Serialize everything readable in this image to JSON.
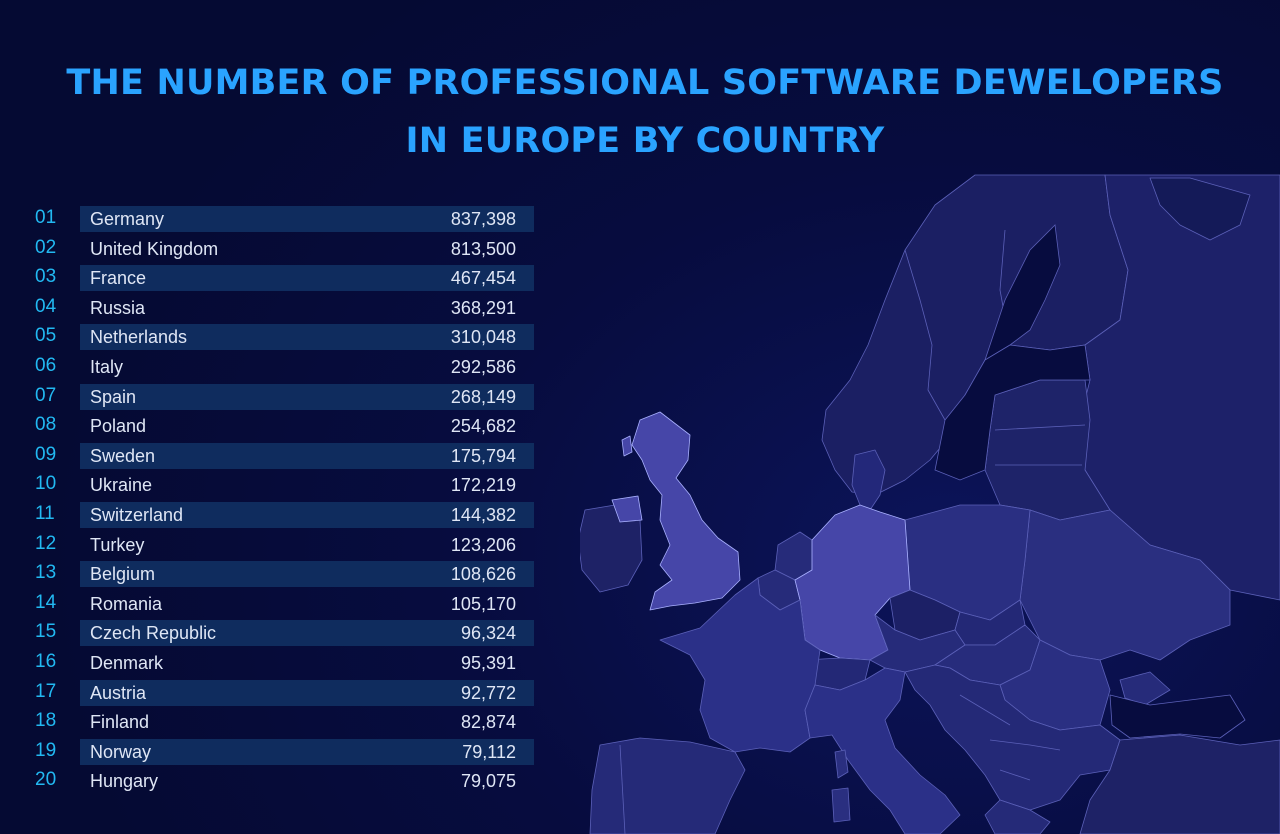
{
  "title": {
    "line1": "THE NUMBER OF PROFESSIONAL SOFTWARE DEWELOPERS",
    "line2": "IN EUROPE BY COUNTRY"
  },
  "colors": {
    "background": "#050a35",
    "title": "#2aa3ff",
    "rank_number": "#22b9f2",
    "row_band": "#0f2c5e",
    "land": "#252a78",
    "land_highlight": "#4547a8",
    "sea": "#070c3f"
  },
  "ranking": [
    {
      "rank": "01",
      "country": "Germany",
      "value": "837,398"
    },
    {
      "rank": "02",
      "country": "United Kingdom",
      "value": "813,500"
    },
    {
      "rank": "03",
      "country": "France",
      "value": "467,454"
    },
    {
      "rank": "04",
      "country": "Russia",
      "value": "368,291"
    },
    {
      "rank": "05",
      "country": "Netherlands",
      "value": "310,048"
    },
    {
      "rank": "06",
      "country": "Italy",
      "value": "292,586"
    },
    {
      "rank": "07",
      "country": "Spain",
      "value": "268,149"
    },
    {
      "rank": "08",
      "country": "Poland",
      "value": "254,682"
    },
    {
      "rank": "09",
      "country": "Sweden",
      "value": "175,794"
    },
    {
      "rank": "10",
      "country": "Ukraine",
      "value": "172,219"
    },
    {
      "rank": "11",
      "country": "Switzerland",
      "value": "144,382"
    },
    {
      "rank": "12",
      "country": "Turkey",
      "value": "123,206"
    },
    {
      "rank": "13",
      "country": "Belgium",
      "value": "108,626"
    },
    {
      "rank": "14",
      "country": "Romania",
      "value": "105,170"
    },
    {
      "rank": "15",
      "country": "Czech Republic",
      "value": "96,324"
    },
    {
      "rank": "16",
      "country": "Denmark",
      "value": "95,391"
    },
    {
      "rank": "17",
      "country": "Austria",
      "value": "92,772"
    },
    {
      "rank": "18",
      "country": "Finland",
      "value": "82,874"
    },
    {
      "rank": "19",
      "country": "Norway",
      "value": "79,112"
    },
    {
      "rank": "20",
      "country": "Hungary",
      "value": "79,075"
    }
  ],
  "map": {
    "highlighted_countries": [
      "United Kingdom",
      "Germany"
    ]
  }
}
